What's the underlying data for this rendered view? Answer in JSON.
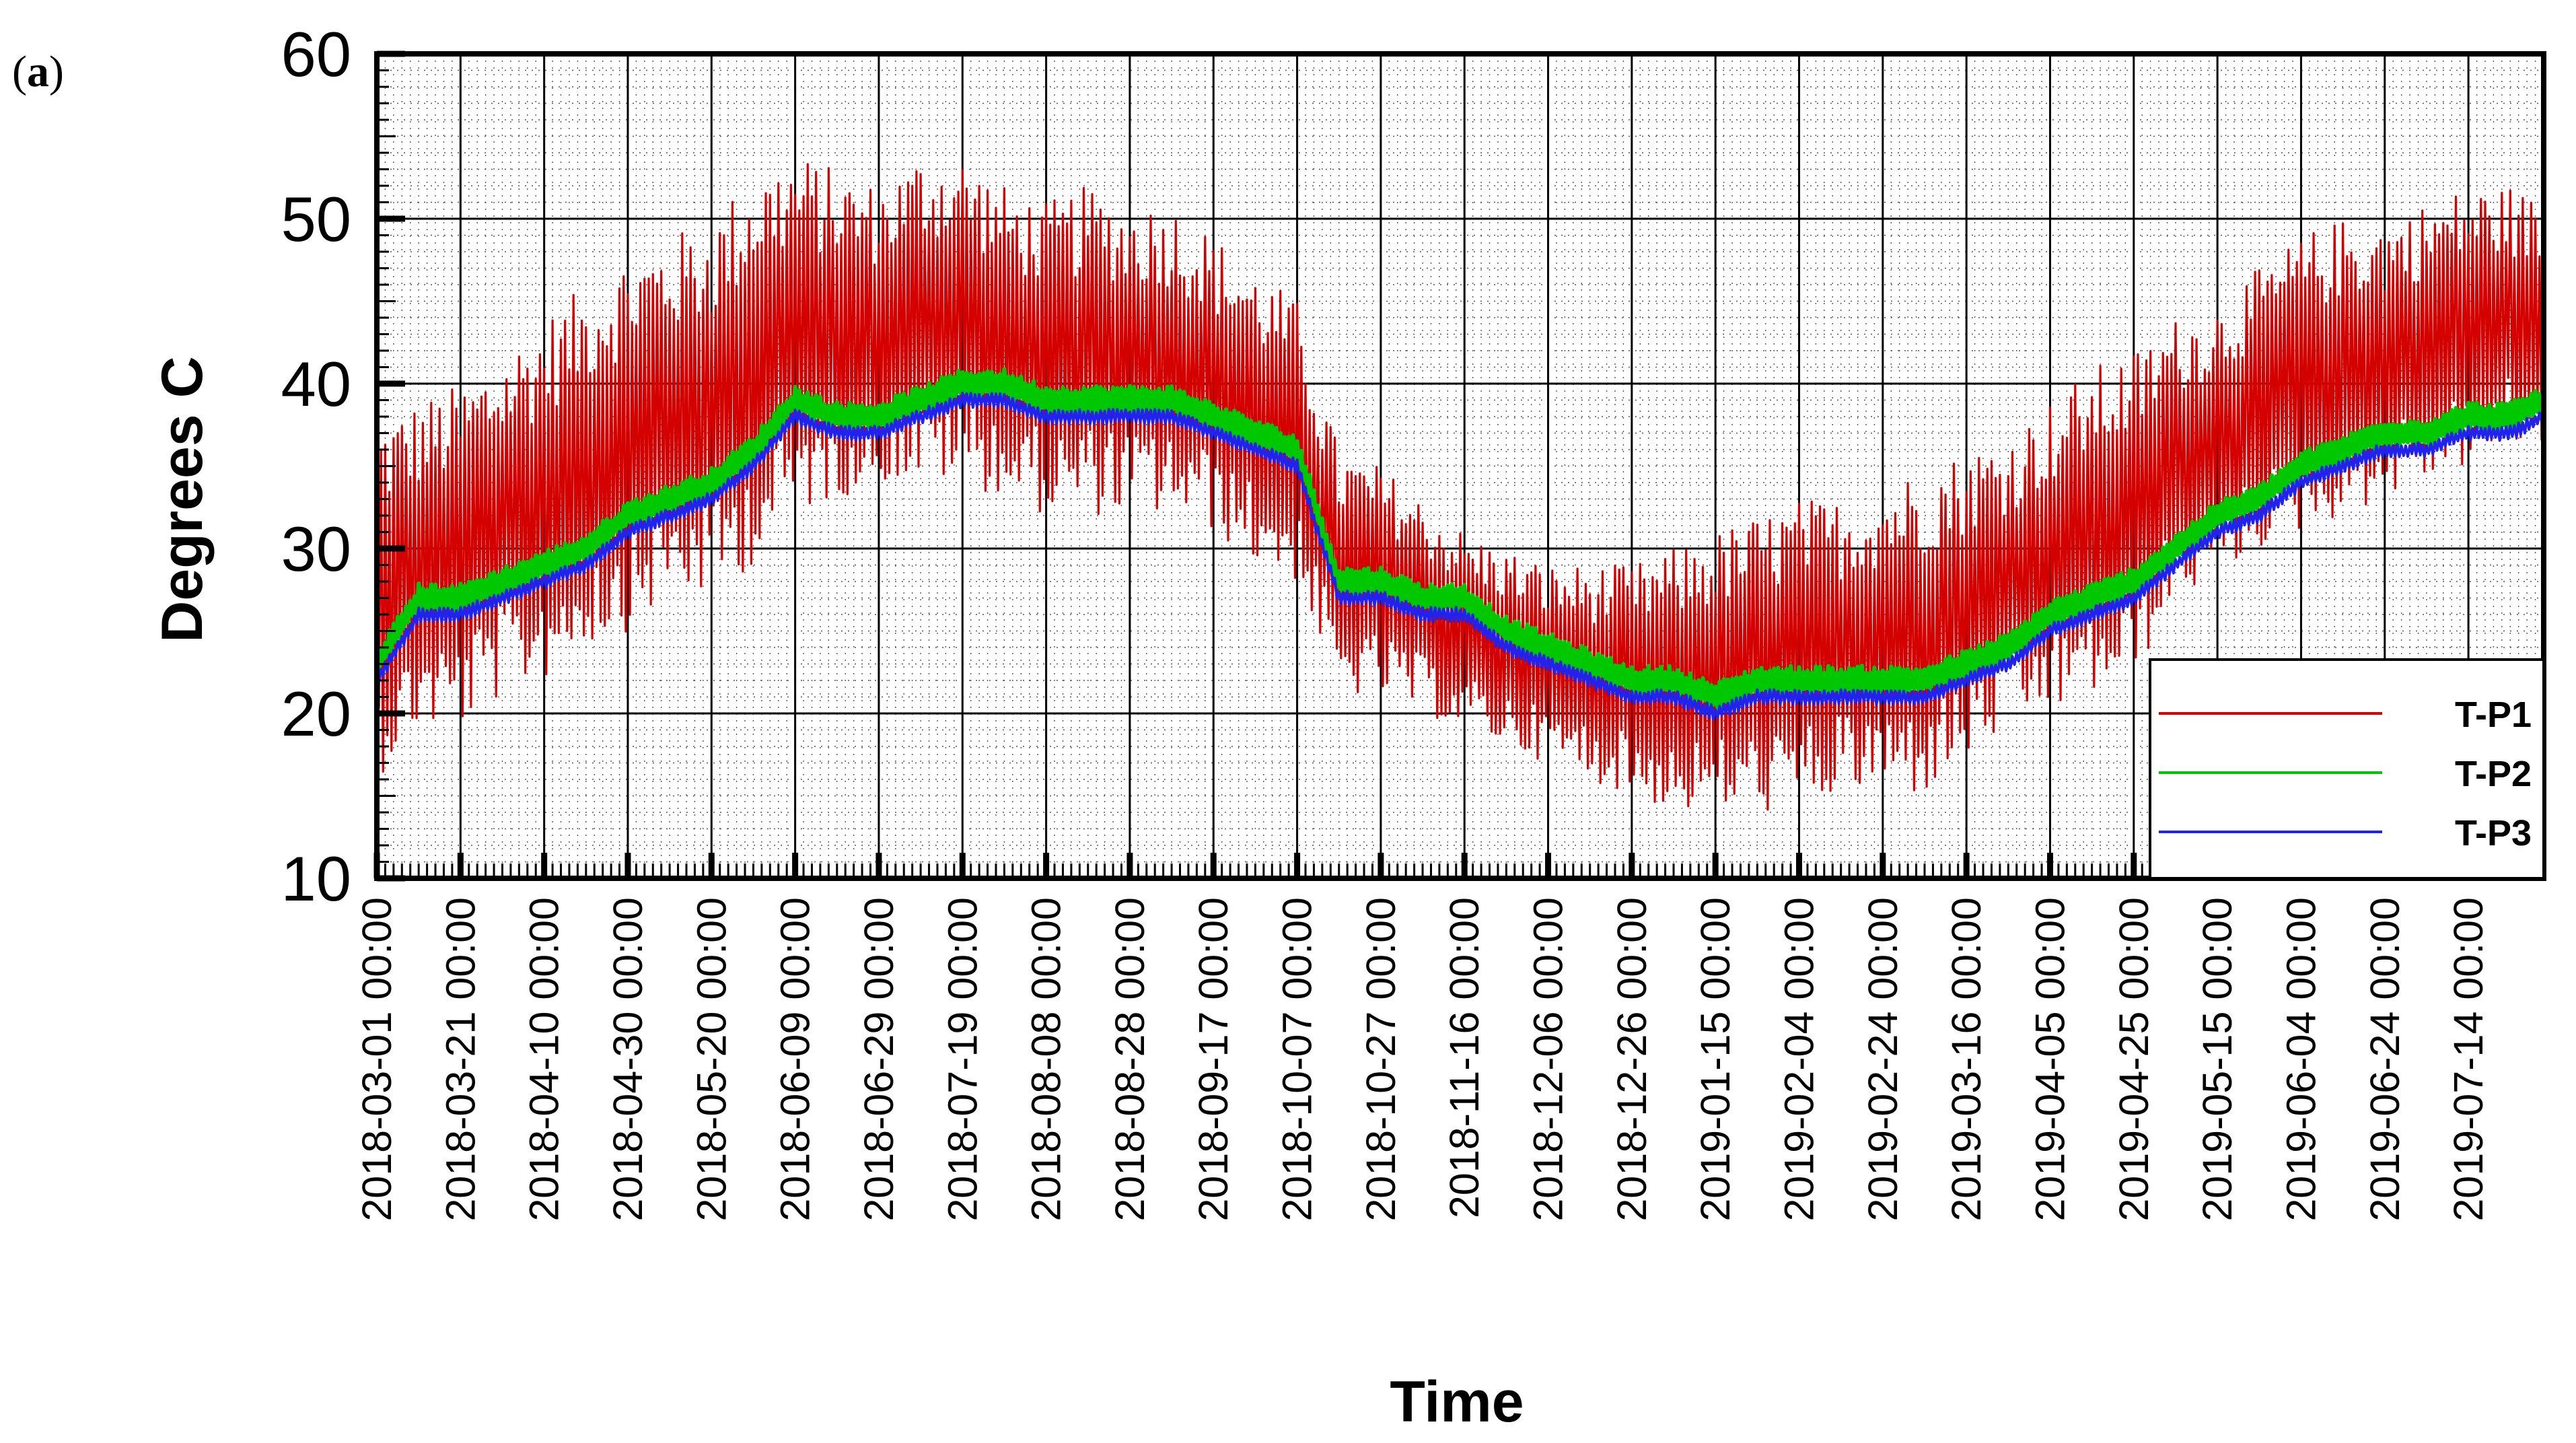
{
  "panel_label": {
    "open": "(",
    "letter": "a",
    "close": ")"
  },
  "chart_data": {
    "type": "line",
    "xlabel": "Time",
    "ylabel": "Degrees C",
    "ylim": [
      10,
      60
    ],
    "yticks": [
      10,
      20,
      30,
      40,
      50,
      60
    ],
    "xlim": [
      "2018-03-01",
      "2019-08-01"
    ],
    "x_tick_labels": [
      "2018-03-01 00:00",
      "2018-03-21 00:00",
      "2018-04-10 00:00",
      "2018-04-30 00:00",
      "2018-05-20 00:00",
      "2018-06-09 00:00",
      "2018-06-29 00:00",
      "2018-07-19 00:00",
      "2018-08-08 00:00",
      "2018-08-28 00:00",
      "2018-09-17 00:00",
      "2018-10-07 00:00",
      "2018-10-27 00:00",
      "2018-11-16 00:00",
      "2018-12-06 00:00",
      "2018-12-26 00:00",
      "2019-01-15 00:00",
      "2019-02-04 00:00",
      "2019-02-24 00:00",
      "2019-03-16 00:00",
      "2019-04-05 00:00",
      "2019-04-25 00:00",
      "2019-05-15 00:00",
      "2019-06-04 00:00",
      "2019-06-24 00:00",
      "2019-07-14 00:00"
    ],
    "grid": true,
    "legend_position": "bottom-right",
    "colors": {
      "T-P1": "#d40000",
      "T-P2": "#00c800",
      "T-P3": "#2222ee"
    },
    "series": [
      {
        "name": "T-P1",
        "note_type": "daily envelope (min / max)",
        "x": [
          "2018-03-01",
          "2018-03-11",
          "2018-03-21",
          "2018-03-31",
          "2018-04-10",
          "2018-04-20",
          "2018-04-30",
          "2018-05-10",
          "2018-05-20",
          "2018-05-30",
          "2018-06-09",
          "2018-06-19",
          "2018-06-29",
          "2018-07-09",
          "2018-07-19",
          "2018-07-29",
          "2018-08-08",
          "2018-08-18",
          "2018-08-28",
          "2018-09-07",
          "2018-09-17",
          "2018-09-27",
          "2018-10-07",
          "2018-10-17",
          "2018-10-27",
          "2018-11-06",
          "2018-11-16",
          "2018-11-26",
          "2018-12-06",
          "2018-12-16",
          "2018-12-26",
          "2019-01-05",
          "2019-01-15",
          "2019-01-25",
          "2019-02-04",
          "2019-02-14",
          "2019-02-24",
          "2019-03-06",
          "2019-03-16",
          "2019-03-26",
          "2019-04-05",
          "2019-04-15",
          "2019-04-25",
          "2019-05-05",
          "2019-05-15",
          "2019-05-25",
          "2019-06-04",
          "2019-06-14",
          "2019-06-24",
          "2019-07-04",
          "2019-07-14",
          "2019-07-24",
          "2019-08-01"
        ],
        "min": [
          16,
          19,
          19,
          21,
          22,
          24,
          25,
          27,
          27,
          29,
          32,
          33,
          34,
          34,
          34,
          33,
          32,
          32,
          32,
          32,
          31,
          29,
          28,
          21,
          21,
          20,
          19,
          18,
          17,
          16,
          15,
          14,
          14,
          14,
          14,
          15,
          15,
          15,
          17,
          19,
          20,
          21,
          22,
          27,
          28,
          30,
          31,
          32,
          33,
          34,
          35,
          36,
          36
        ],
        "max": [
          38,
          39,
          40,
          42,
          44,
          46,
          48,
          49,
          50,
          53,
          54,
          53,
          52,
          54,
          54,
          52,
          51,
          52,
          51,
          51,
          49,
          47,
          45,
          36,
          35,
          33,
          31,
          30,
          29,
          29,
          29,
          30,
          31,
          32,
          33,
          33,
          34,
          35,
          36,
          37,
          39,
          41,
          42,
          44,
          45,
          47,
          49,
          50,
          50,
          51,
          52,
          52,
          51
        ]
      },
      {
        "name": "T-P2",
        "x": [
          "2018-03-01",
          "2018-03-11",
          "2018-03-21",
          "2018-03-31",
          "2018-04-10",
          "2018-04-20",
          "2018-04-30",
          "2018-05-10",
          "2018-05-20",
          "2018-05-30",
          "2018-06-09",
          "2018-06-19",
          "2018-06-29",
          "2018-07-09",
          "2018-07-19",
          "2018-07-29",
          "2018-08-08",
          "2018-08-18",
          "2018-08-28",
          "2018-09-07",
          "2018-09-17",
          "2018-09-27",
          "2018-10-07",
          "2018-10-17",
          "2018-10-27",
          "2018-11-06",
          "2018-11-16",
          "2018-11-26",
          "2018-12-06",
          "2018-12-16",
          "2018-12-26",
          "2019-01-05",
          "2019-01-15",
          "2019-01-25",
          "2019-02-04",
          "2019-02-14",
          "2019-02-24",
          "2019-03-06",
          "2019-03-16",
          "2019-03-26",
          "2019-04-05",
          "2019-04-15",
          "2019-04-25",
          "2019-05-05",
          "2019-05-15",
          "2019-05-25",
          "2019-06-04",
          "2019-06-14",
          "2019-06-24",
          "2019-07-04",
          "2019-07-14",
          "2019-07-24",
          "2019-08-01"
        ],
        "y": [
          23,
          27,
          27,
          28,
          29,
          30,
          32,
          33,
          34,
          36,
          39,
          38,
          38,
          39,
          40,
          40,
          39,
          39,
          39,
          39,
          38,
          37,
          36,
          28,
          28,
          27,
          27,
          25,
          24,
          23,
          22,
          22,
          21,
          22,
          22,
          22,
          22,
          22,
          23,
          24,
          26,
          27,
          28,
          30,
          32,
          33,
          35,
          36,
          37,
          37,
          38,
          38,
          39
        ]
      },
      {
        "name": "T-P3",
        "x": [
          "2018-03-01",
          "2018-03-11",
          "2018-03-21",
          "2018-03-31",
          "2018-04-10",
          "2018-04-20",
          "2018-04-30",
          "2018-05-10",
          "2018-05-20",
          "2018-05-30",
          "2018-06-09",
          "2018-06-19",
          "2018-06-29",
          "2018-07-09",
          "2018-07-19",
          "2018-07-29",
          "2018-08-08",
          "2018-08-18",
          "2018-08-28",
          "2018-09-07",
          "2018-09-17",
          "2018-09-27",
          "2018-10-07",
          "2018-10-17",
          "2018-10-27",
          "2018-11-06",
          "2018-11-16",
          "2018-11-26",
          "2018-12-06",
          "2018-12-16",
          "2018-12-26",
          "2019-01-05",
          "2019-01-15",
          "2019-01-25",
          "2019-02-04",
          "2019-02-14",
          "2019-02-24",
          "2019-03-06",
          "2019-03-16",
          "2019-03-26",
          "2019-04-05",
          "2019-04-15",
          "2019-04-25",
          "2019-05-05",
          "2019-05-15",
          "2019-05-25",
          "2019-06-04",
          "2019-06-14",
          "2019-06-24",
          "2019-07-04",
          "2019-07-14",
          "2019-07-24",
          "2019-08-01"
        ],
        "y": [
          22,
          26,
          26,
          27,
          28,
          29,
          31,
          32,
          33,
          35,
          38,
          37,
          37,
          38,
          39,
          39,
          38,
          38,
          38,
          38,
          37,
          36,
          35,
          27,
          27,
          26,
          26,
          24,
          23,
          22,
          21,
          21,
          20,
          21,
          21,
          21,
          21,
          21,
          22,
          23,
          25,
          26,
          27,
          29,
          31,
          32,
          34,
          35,
          36,
          36,
          37,
          37,
          38
        ]
      }
    ]
  }
}
